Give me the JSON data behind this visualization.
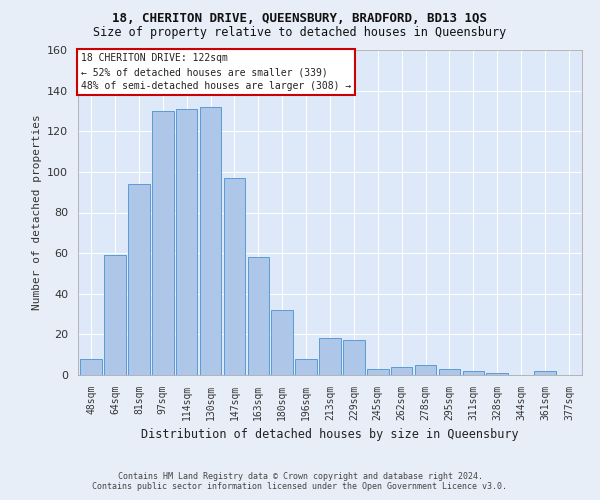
{
  "title_line1": "18, CHERITON DRIVE, QUEENSBURY, BRADFORD, BD13 1QS",
  "title_line2": "Size of property relative to detached houses in Queensbury",
  "xlabel": "Distribution of detached houses by size in Queensbury",
  "ylabel": "Number of detached properties",
  "categories": [
    "48sqm",
    "64sqm",
    "81sqm",
    "97sqm",
    "114sqm",
    "130sqm",
    "147sqm",
    "163sqm",
    "180sqm",
    "196sqm",
    "213sqm",
    "229sqm",
    "245sqm",
    "262sqm",
    "278sqm",
    "295sqm",
    "311sqm",
    "328sqm",
    "344sqm",
    "361sqm",
    "377sqm"
  ],
  "values": [
    8,
    59,
    94,
    130,
    131,
    132,
    97,
    58,
    32,
    8,
    18,
    17,
    3,
    4,
    5,
    3,
    2,
    1,
    0,
    2,
    0
  ],
  "bar_color": "#aec6e8",
  "bar_edge_color": "#5b9bd5",
  "background_color": "#dde8f8",
  "grid_color": "#ffffff",
  "annotation_box_text_line1": "18 CHERITON DRIVE: 122sqm",
  "annotation_box_text_line2": "← 52% of detached houses are smaller (339)",
  "annotation_box_text_line3": "48% of semi-detached houses are larger (308) →",
  "annotation_box_color": "#ffffff",
  "annotation_box_edge_color": "#cc0000",
  "fig_background_color": "#e8eef8",
  "ylim": [
    0,
    160
  ],
  "yticks": [
    0,
    20,
    40,
    60,
    80,
    100,
    120,
    140,
    160
  ],
  "footer_line1": "Contains HM Land Registry data © Crown copyright and database right 2024.",
  "footer_line2": "Contains public sector information licensed under the Open Government Licence v3.0."
}
